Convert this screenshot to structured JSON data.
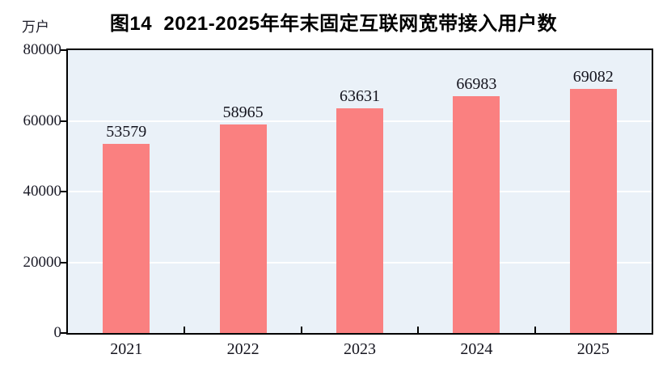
{
  "chart_data": {
    "type": "bar",
    "title": "图14  2021-2025年年末固定互联网宽带接入用户数",
    "unit_label": "万户",
    "categories": [
      "2021",
      "2022",
      "2023",
      "2024",
      "2025"
    ],
    "values": [
      53579,
      58965,
      63631,
      66983,
      69082
    ],
    "xlabel": "",
    "ylabel": "万户",
    "ylim": [
      0,
      80000
    ],
    "y_ticks": [
      0,
      20000,
      40000,
      60000,
      80000
    ],
    "gridline_values": [
      20000,
      40000,
      60000
    ],
    "grid": true,
    "legend_position": "none",
    "colors": {
      "bar": "#FA8080",
      "plot_background": "#EAF1F8",
      "gridline": "#FFFFFF",
      "axis_border": "#000000",
      "tick_label_text": "#1A1A26",
      "title_text": "#000000"
    }
  }
}
